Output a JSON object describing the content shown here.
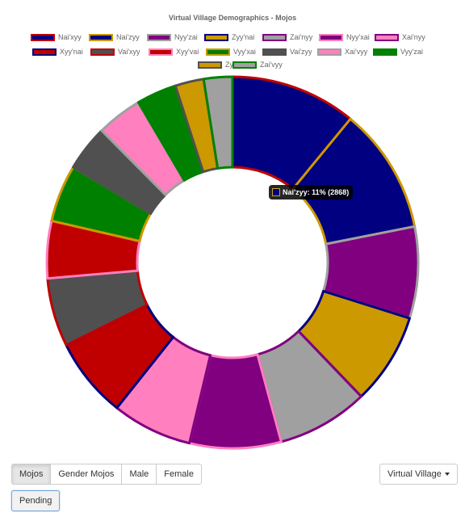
{
  "controls": {
    "tabs": [
      {
        "label": "Mojos",
        "active": true
      },
      {
        "label": "Gender Mojos",
        "active": false
      },
      {
        "label": "Male",
        "active": false
      },
      {
        "label": "Female",
        "active": false
      }
    ],
    "village_dropdown_label": "Virtual Village",
    "pending_label": "Pending"
  },
  "tooltip": {
    "text": "Nai'zyy: 11% (2868)"
  },
  "chart_data": {
    "type": "pie",
    "variant": "doughnut",
    "title": "Virtual Village Demographics - Mojos",
    "legend_position": "top",
    "categories": [
      "Nai'xyy",
      "Nai'zyy",
      "Nyy'zai",
      "Zyy'nai",
      "Zai'nyy",
      "Nyy'xai",
      "Xai'nyy",
      "Xyy'nai",
      "Vai'xyy",
      "Xyy'vai",
      "Vyy'xai",
      "Vai'zyy",
      "Xai'vyy",
      "Vyy'zai",
      "Zyy'vai",
      "Zai'vyy"
    ],
    "values": [
      11,
      11,
      8,
      8,
      8,
      8,
      7,
      7,
      6,
      5,
      5,
      4,
      4,
      3.5,
      2.5,
      2.5
    ],
    "fill_colors": [
      "#000080",
      "#000080",
      "#800080",
      "#cc9900",
      "#a0a0a0",
      "#800080",
      "#ff7fbf",
      "#c00000",
      "#505050",
      "#c00000",
      "#008000",
      "#505050",
      "#ff7fbf",
      "#008000",
      "#cc9900",
      "#a0a0a0"
    ],
    "border_colors": [
      "#c00000",
      "#cc9900",
      "#a0a0a0",
      "#000080",
      "#800080",
      "#ff7fbf",
      "#800080",
      "#000080",
      "#c00000",
      "#ff7fbf",
      "#cc9900",
      "#505050",
      "#a0a0a0",
      "#008000",
      "#505050",
      "#008000"
    ]
  }
}
